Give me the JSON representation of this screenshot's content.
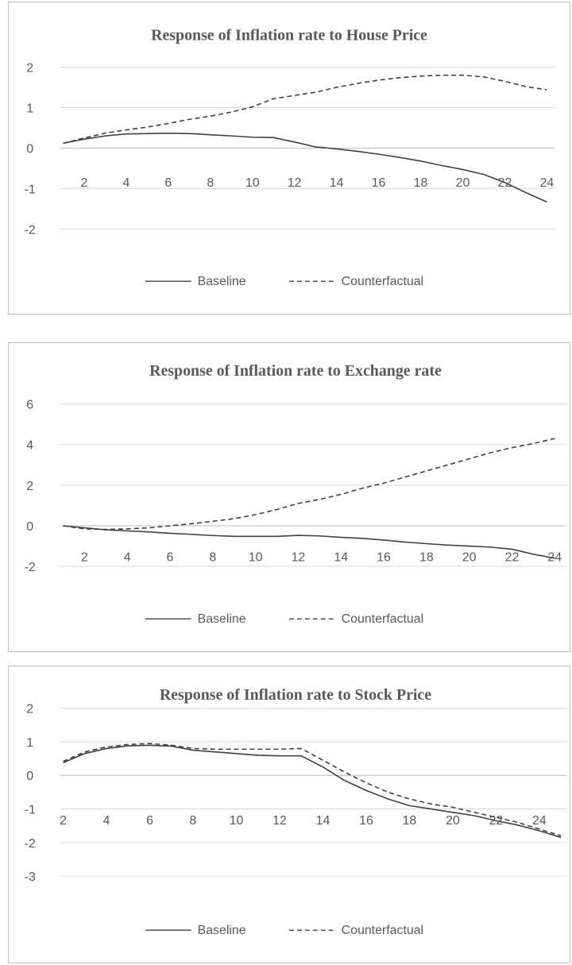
{
  "chart_data": [
    {
      "type": "line",
      "title": "Response of Inflation rate to House Price",
      "xlabel": "",
      "ylabel": "",
      "x": [
        1,
        2,
        3,
        4,
        5,
        6,
        7,
        8,
        9,
        10,
        11,
        12,
        13,
        14,
        15,
        16,
        17,
        18,
        19,
        20,
        21,
        22,
        23,
        24
      ],
      "x_tick_labels": [
        "2",
        "4",
        "6",
        "8",
        "10",
        "12",
        "14",
        "16",
        "18",
        "20",
        "22",
        "24"
      ],
      "y_tick_labels": [
        "2",
        "1",
        "0",
        "-1",
        "-2"
      ],
      "ylim": [
        -2.5,
        2
      ],
      "y_ticks": [
        2,
        1,
        0,
        -1,
        -2
      ],
      "grid": true,
      "legend": "bottom",
      "series": [
        {
          "name": "Baseline",
          "style": "solid",
          "values": [
            0.12,
            0.22,
            0.3,
            0.35,
            0.36,
            0.37,
            0.36,
            0.33,
            0.3,
            0.27,
            0.26,
            0.15,
            0.03,
            -0.02,
            -0.08,
            -0.15,
            -0.23,
            -0.32,
            -0.43,
            -0.53,
            -0.65,
            -0.85,
            -1.1,
            -1.33
          ]
        },
        {
          "name": "Counterfactual",
          "style": "dashed",
          "values": [
            0.12,
            0.25,
            0.37,
            0.45,
            0.52,
            0.61,
            0.71,
            0.79,
            0.89,
            1.02,
            1.22,
            1.3,
            1.38,
            1.5,
            1.6,
            1.68,
            1.74,
            1.78,
            1.8,
            1.8,
            1.76,
            1.65,
            1.52,
            1.44
          ]
        }
      ]
    },
    {
      "type": "line",
      "title": "Response of Inflation rate to Exchange rate",
      "xlabel": "",
      "ylabel": "",
      "x": [
        1,
        2,
        3,
        4,
        5,
        6,
        7,
        8,
        9,
        10,
        11,
        12,
        13,
        14,
        15,
        16,
        17,
        18,
        19,
        20,
        21,
        22,
        23,
        24
      ],
      "x_tick_labels": [
        "2",
        "4",
        "6",
        "8",
        "10",
        "12",
        "14",
        "16",
        "18",
        "20",
        "22",
        "24"
      ],
      "y_tick_labels": [
        "6",
        "4",
        "2",
        "0",
        "-2"
      ],
      "ylim": [
        -3,
        6
      ],
      "y_ticks": [
        6,
        4,
        2,
        0,
        -2
      ],
      "grid": true,
      "legend": "bottom",
      "series": [
        {
          "name": "Baseline",
          "style": "solid",
          "values": [
            0.0,
            -0.1,
            -0.2,
            -0.25,
            -0.3,
            -0.37,
            -0.42,
            -0.48,
            -0.52,
            -0.52,
            -0.52,
            -0.47,
            -0.5,
            -0.57,
            -0.62,
            -0.7,
            -0.8,
            -0.88,
            -0.95,
            -1.0,
            -1.05,
            -1.15,
            -1.4,
            -1.6
          ]
        },
        {
          "name": "Counterfactual",
          "style": "dashed",
          "values": [
            0.0,
            -0.15,
            -0.18,
            -0.15,
            -0.1,
            0.0,
            0.1,
            0.22,
            0.35,
            0.55,
            0.8,
            1.1,
            1.3,
            1.55,
            1.85,
            2.1,
            2.4,
            2.7,
            3.0,
            3.3,
            3.6,
            3.85,
            4.05,
            4.3
          ]
        }
      ]
    },
    {
      "type": "line",
      "title": "Response of Inflation rate to Stock Price",
      "xlabel": "",
      "ylabel": "",
      "x": [
        2,
        3,
        4,
        5,
        6,
        7,
        8,
        9,
        10,
        11,
        12,
        13,
        14,
        15,
        16,
        17,
        18,
        19,
        20,
        21,
        22,
        23,
        24,
        25
      ],
      "x_tick_labels": [
        "2",
        "4",
        "6",
        "8",
        "10",
        "12",
        "14",
        "16",
        "18",
        "20",
        "22",
        "24"
      ],
      "x_tick_values": [
        2,
        4,
        6,
        8,
        10,
        12,
        14,
        16,
        18,
        20,
        22,
        24
      ],
      "y_tick_labels": [
        "2",
        "1",
        "0",
        "-1",
        "-2",
        "-3"
      ],
      "ylim": [
        -3,
        2
      ],
      "y_ticks": [
        2,
        1,
        0,
        -1,
        -2,
        -3
      ],
      "grid": true,
      "legend": "bottom",
      "series": [
        {
          "name": "Baseline",
          "style": "solid",
          "values": [
            0.38,
            0.65,
            0.8,
            0.88,
            0.9,
            0.87,
            0.75,
            0.7,
            0.65,
            0.6,
            0.58,
            0.58,
            0.25,
            -0.15,
            -0.45,
            -0.7,
            -0.9,
            -1.0,
            -1.1,
            -1.2,
            -1.35,
            -1.48,
            -1.65,
            -1.85
          ]
        },
        {
          "name": "Counterfactual",
          "style": "dashed",
          "values": [
            0.42,
            0.7,
            0.85,
            0.92,
            0.95,
            0.9,
            0.8,
            0.78,
            0.78,
            0.78,
            0.78,
            0.8,
            0.45,
            0.1,
            -0.22,
            -0.5,
            -0.7,
            -0.85,
            -0.95,
            -1.1,
            -1.25,
            -1.4,
            -1.6,
            -1.8
          ]
        }
      ]
    }
  ]
}
